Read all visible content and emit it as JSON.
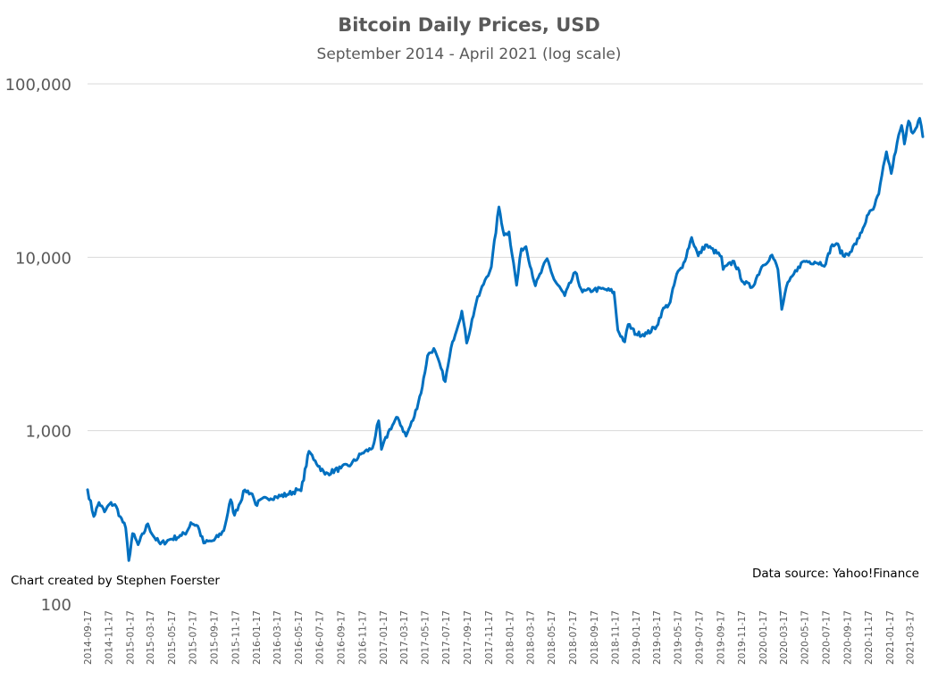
{
  "chart_data": {
    "type": "line",
    "title": "Bitcoin Daily Prices, USD",
    "subtitle": "September 2014 - April 2021 (log scale)",
    "y_scale": "log",
    "ylim": [
      100,
      100000
    ],
    "y_ticks": [
      {
        "value": 100,
        "label": "100"
      },
      {
        "value": 1000,
        "label": "1,000"
      },
      {
        "value": 10000,
        "label": "10,000"
      },
      {
        "value": 100000,
        "label": "100,000"
      }
    ],
    "x_tick_labels": [
      "2014-09-17",
      "2014-11-17",
      "2015-01-17",
      "2015-03-17",
      "2015-05-17",
      "2015-07-17",
      "2015-09-17",
      "2015-11-17",
      "2016-01-17",
      "2016-03-17",
      "2016-05-17",
      "2016-07-17",
      "2016-09-17",
      "2016-11-17",
      "2017-01-17",
      "2017-03-17",
      "2017-05-17",
      "2017-07-17",
      "2017-09-17",
      "2017-11-17",
      "2018-01-17",
      "2018-03-17",
      "2018-05-17",
      "2018-07-17",
      "2018-09-17",
      "2018-11-17",
      "2019-01-17",
      "2019-03-17",
      "2019-05-17",
      "2019-07-17",
      "2019-09-17",
      "2019-11-17",
      "2020-01-17",
      "2020-03-17",
      "2020-05-17",
      "2020-07-17",
      "2020-09-17",
      "2020-11-17",
      "2021-01-17",
      "2021-03-17"
    ],
    "x_range": [
      "2014-09-17",
      "2021-04-23"
    ],
    "grid": "horizontal",
    "legend": "none",
    "line_color": "#0070c0",
    "series": [
      {
        "points": [
          [
            "2014-09-17",
            457
          ],
          [
            "2014-10-05",
            320
          ],
          [
            "2014-10-20",
            385
          ],
          [
            "2014-11-05",
            340
          ],
          [
            "2014-11-20",
            378
          ],
          [
            "2014-12-05",
            375
          ],
          [
            "2014-12-20",
            320
          ],
          [
            "2015-01-05",
            275
          ],
          [
            "2015-01-14",
            178
          ],
          [
            "2015-01-25",
            255
          ],
          [
            "2015-02-10",
            220
          ],
          [
            "2015-03-10",
            290
          ],
          [
            "2015-03-25",
            248
          ],
          [
            "2015-04-15",
            222
          ],
          [
            "2015-05-15",
            237
          ],
          [
            "2015-06-15",
            248
          ],
          [
            "2015-07-01",
            262
          ],
          [
            "2015-07-12",
            295
          ],
          [
            "2015-08-01",
            282
          ],
          [
            "2015-08-18",
            225
          ],
          [
            "2015-09-17",
            233
          ],
          [
            "2015-10-15",
            265
          ],
          [
            "2015-11-04",
            400
          ],
          [
            "2015-11-15",
            325
          ],
          [
            "2015-12-15",
            455
          ],
          [
            "2016-01-05",
            432
          ],
          [
            "2016-01-15",
            375
          ],
          [
            "2016-02-15",
            410
          ],
          [
            "2016-03-15",
            415
          ],
          [
            "2016-04-15",
            428
          ],
          [
            "2016-05-15",
            455
          ],
          [
            "2016-05-25",
            450
          ],
          [
            "2016-06-17",
            760
          ],
          [
            "2016-07-05",
            670
          ],
          [
            "2016-08-02",
            560
          ],
          [
            "2016-09-17",
            608
          ],
          [
            "2016-10-17",
            640
          ],
          [
            "2016-11-17",
            742
          ],
          [
            "2016-12-17",
            792
          ],
          [
            "2017-01-04",
            1140
          ],
          [
            "2017-01-12",
            780
          ],
          [
            "2017-02-05",
            1020
          ],
          [
            "2017-02-28",
            1190
          ],
          [
            "2017-03-24",
            930
          ],
          [
            "2017-04-17",
            1210
          ],
          [
            "2017-05-10",
            1790
          ],
          [
            "2017-05-25",
            2700
          ],
          [
            "2017-06-12",
            2980
          ],
          [
            "2017-07-15",
            1920
          ],
          [
            "2017-08-05",
            3250
          ],
          [
            "2017-09-01",
            4890
          ],
          [
            "2017-09-15",
            3200
          ],
          [
            "2017-10-12",
            5430
          ],
          [
            "2017-11-07",
            7400
          ],
          [
            "2017-11-25",
            8800
          ],
          [
            "2017-12-17",
            19500
          ],
          [
            "2018-01-01",
            13400
          ],
          [
            "2018-01-15",
            14000
          ],
          [
            "2018-02-06",
            6900
          ],
          [
            "2018-02-20",
            11200
          ],
          [
            "2018-03-05",
            11500
          ],
          [
            "2018-04-01",
            6850
          ],
          [
            "2018-05-05",
            9800
          ],
          [
            "2018-05-25",
            7450
          ],
          [
            "2018-06-25",
            6000
          ],
          [
            "2018-07-25",
            8200
          ],
          [
            "2018-08-15",
            6300
          ],
          [
            "2018-09-17",
            6500
          ],
          [
            "2018-10-17",
            6550
          ],
          [
            "2018-11-14",
            6300
          ],
          [
            "2018-11-25",
            3800
          ],
          [
            "2018-12-15",
            3250
          ],
          [
            "2018-12-25",
            4100
          ],
          [
            "2019-01-17",
            3600
          ],
          [
            "2019-02-17",
            3630
          ],
          [
            "2019-03-17",
            4000
          ],
          [
            "2019-04-02",
            4900
          ],
          [
            "2019-04-25",
            5500
          ],
          [
            "2019-05-14",
            8000
          ],
          [
            "2019-05-30",
            8700
          ],
          [
            "2019-06-26",
            13000
          ],
          [
            "2019-07-15",
            10200
          ],
          [
            "2019-08-05",
            11800
          ],
          [
            "2019-09-20",
            10100
          ],
          [
            "2019-09-25",
            8500
          ],
          [
            "2019-10-26",
            9500
          ],
          [
            "2019-11-22",
            7200
          ],
          [
            "2019-12-17",
            6700
          ],
          [
            "2020-01-14",
            8800
          ],
          [
            "2020-02-13",
            10300
          ],
          [
            "2020-03-01",
            8500
          ],
          [
            "2020-03-12",
            5000
          ],
          [
            "2020-03-25",
            6700
          ],
          [
            "2020-04-29",
            8800
          ],
          [
            "2020-05-15",
            9500
          ],
          [
            "2020-06-15",
            9400
          ],
          [
            "2020-07-17",
            9150
          ],
          [
            "2020-08-01",
            11500
          ],
          [
            "2020-08-17",
            12000
          ],
          [
            "2020-09-05",
            10200
          ],
          [
            "2020-09-25",
            10700
          ],
          [
            "2020-10-21",
            12900
          ],
          [
            "2020-11-17",
            17700
          ],
          [
            "2020-12-01",
            18900
          ],
          [
            "2020-12-17",
            23200
          ],
          [
            "2021-01-08",
            40600
          ],
          [
            "2021-01-22",
            30400
          ],
          [
            "2021-02-08",
            46000
          ],
          [
            "2021-02-21",
            57500
          ],
          [
            "2021-03-01",
            45000
          ],
          [
            "2021-03-13",
            61000
          ],
          [
            "2021-03-25",
            52000
          ],
          [
            "2021-04-14",
            63300
          ],
          [
            "2021-04-23",
            49500
          ]
        ]
      }
    ],
    "annotations": [
      {
        "text": "Chart created by Stephen Foerster",
        "position": "bottom-left"
      },
      {
        "text": "Data source: Yahoo!Finance",
        "position": "bottom-right"
      }
    ]
  }
}
